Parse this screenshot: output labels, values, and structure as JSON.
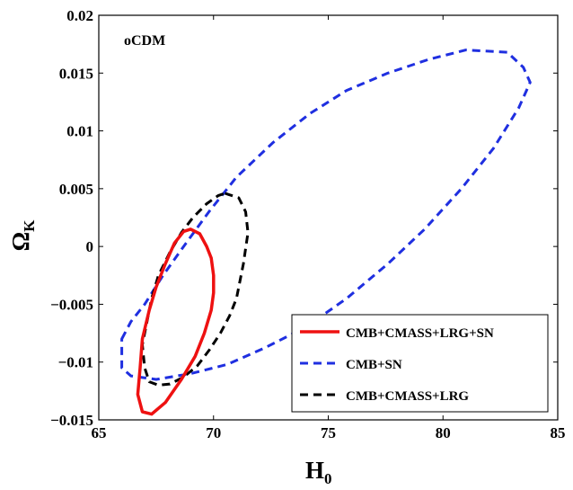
{
  "chart_data": {
    "type": "line",
    "annotation": "oCDM",
    "xlabel": {
      "main": "H",
      "sub": "0"
    },
    "ylabel": {
      "main": "Ω",
      "sub": "K"
    },
    "xlim": [
      65,
      85
    ],
    "ylim": [
      -0.015,
      0.02
    ],
    "xticks": [
      65,
      70,
      75,
      80,
      85
    ],
    "xtick_labels": [
      "65",
      "70",
      "75",
      "80",
      "85"
    ],
    "yticks": [
      -0.015,
      -0.01,
      -0.005,
      0,
      0.005,
      0.01,
      0.015,
      0.02
    ],
    "ytick_labels": [
      "−0.015",
      "−0.01",
      "−0.005",
      "0",
      "0.005",
      "0.01",
      "0.015",
      "0.02"
    ],
    "legend_position": "bottom-right",
    "series": [
      {
        "name": "CMB+CMASS+LRG+SN",
        "color": "#ee1111",
        "style": "solid",
        "points": [
          [
            69.0,
            0.0015
          ],
          [
            69.4,
            0.0011
          ],
          [
            69.7,
            0.0
          ],
          [
            69.9,
            -0.001
          ],
          [
            70.0,
            -0.0025
          ],
          [
            70.0,
            -0.004
          ],
          [
            69.9,
            -0.0055
          ],
          [
            69.6,
            -0.0075
          ],
          [
            69.2,
            -0.0095
          ],
          [
            68.6,
            -0.0115
          ],
          [
            67.9,
            -0.0135
          ],
          [
            67.3,
            -0.0145
          ],
          [
            66.9,
            -0.0143
          ],
          [
            66.7,
            -0.0128
          ],
          [
            66.8,
            -0.0105
          ],
          [
            66.9,
            -0.008
          ],
          [
            67.2,
            -0.0055
          ],
          [
            67.5,
            -0.0035
          ],
          [
            67.9,
            -0.0015
          ],
          [
            68.3,
            0.0003
          ],
          [
            68.7,
            0.0013
          ],
          [
            69.0,
            0.0015
          ]
        ]
      },
      {
        "name": "CMB+SN",
        "color": "#1f2fe0",
        "style": "dashed",
        "points": [
          [
            66.0,
            -0.008
          ],
          [
            66.4,
            -0.0065
          ],
          [
            67.0,
            -0.005
          ],
          [
            67.8,
            -0.0025
          ],
          [
            68.7,
            0.0
          ],
          [
            69.8,
            0.003
          ],
          [
            71.0,
            0.006
          ],
          [
            72.6,
            0.009
          ],
          [
            74.2,
            0.0115
          ],
          [
            75.8,
            0.0135
          ],
          [
            77.6,
            0.015
          ],
          [
            79.4,
            0.0162
          ],
          [
            81.0,
            0.017
          ],
          [
            82.8,
            0.0168
          ],
          [
            83.5,
            0.0155
          ],
          [
            83.8,
            0.0142
          ],
          [
            83.3,
            0.012
          ],
          [
            82.2,
            0.0085
          ],
          [
            80.8,
            0.005
          ],
          [
            79.2,
            0.0015
          ],
          [
            77.6,
            -0.0015
          ],
          [
            75.8,
            -0.0045
          ],
          [
            74.0,
            -0.007
          ],
          [
            72.2,
            -0.0088
          ],
          [
            70.6,
            -0.0102
          ],
          [
            69.0,
            -0.011
          ],
          [
            67.5,
            -0.0115
          ],
          [
            66.4,
            -0.0112
          ],
          [
            66.0,
            -0.0105
          ],
          [
            66.0,
            -0.008
          ]
        ]
      },
      {
        "name": "CMB+CMASS+LRG",
        "color": "#000000",
        "style": "dashed",
        "points": [
          [
            70.5,
            0.0046
          ],
          [
            71.1,
            0.0042
          ],
          [
            71.4,
            0.003
          ],
          [
            71.5,
            0.0012
          ],
          [
            71.3,
            -0.0015
          ],
          [
            71.0,
            -0.0045
          ],
          [
            70.7,
            -0.006
          ],
          [
            70.3,
            -0.0075
          ],
          [
            69.8,
            -0.009
          ],
          [
            69.3,
            -0.0103
          ],
          [
            68.7,
            -0.0113
          ],
          [
            68.1,
            -0.0119
          ],
          [
            67.6,
            -0.012
          ],
          [
            67.2,
            -0.0117
          ],
          [
            67.0,
            -0.0105
          ],
          [
            66.9,
            -0.0085
          ],
          [
            67.1,
            -0.0065
          ],
          [
            67.3,
            -0.0045
          ],
          [
            67.6,
            -0.0025
          ],
          [
            68.1,
            -0.0005
          ],
          [
            68.6,
            0.0012
          ],
          [
            69.1,
            0.0025
          ],
          [
            69.7,
            0.0037
          ],
          [
            70.2,
            0.0044
          ],
          [
            70.5,
            0.0046
          ]
        ]
      }
    ]
  }
}
